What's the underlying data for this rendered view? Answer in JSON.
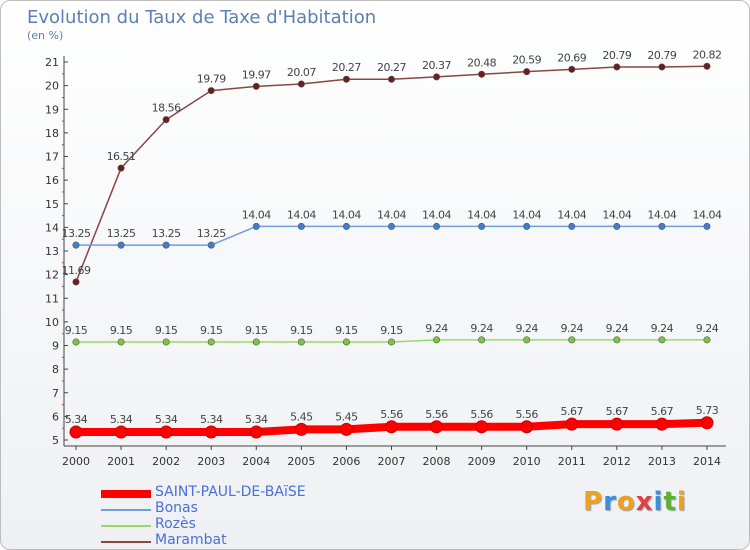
{
  "chart_data": {
    "type": "line",
    "title": "Evolution du Taux de Taxe d'Habitation",
    "subtitle": "(en %)",
    "x": [
      2000,
      2001,
      2002,
      2003,
      2004,
      2005,
      2006,
      2007,
      2008,
      2009,
      2010,
      2011,
      2012,
      2013,
      2014
    ],
    "ylim": [
      5,
      21
    ],
    "yticks": [
      5,
      6,
      7,
      8,
      9,
      10,
      11,
      12,
      13,
      14,
      15,
      16,
      17,
      18,
      19,
      20,
      21
    ],
    "grid": false,
    "legend_position": "bottom-left",
    "series": [
      {
        "name": "SAINT-PAUL-DE-BAïSE",
        "color": "#ff0000",
        "marker_color": "#ff0000",
        "emphasized": true,
        "labels": [
          "5.34",
          "5.34",
          "5.34",
          "5.34",
          "5.34",
          "5.45",
          "5.45",
          "5.56",
          "5.56",
          "5.56",
          "5.56",
          "5.67",
          "5.67",
          "5.67",
          "5.73"
        ],
        "values": [
          5.34,
          5.34,
          5.34,
          5.34,
          5.34,
          5.45,
          5.45,
          5.56,
          5.56,
          5.56,
          5.56,
          5.67,
          5.67,
          5.67,
          5.73
        ]
      },
      {
        "name": "Bonas",
        "color": "#6d9fd8",
        "marker_color": "#3f7fd0",
        "emphasized": false,
        "labels": [
          "13.25",
          "13.25",
          "13.25",
          "13.25",
          "14.04",
          "14.04",
          "14.04",
          "14.04",
          "14.04",
          "14.04",
          "14.04",
          "14.04",
          "14.04",
          "14.04",
          "14.04"
        ],
        "values": [
          13.25,
          13.25,
          13.25,
          13.25,
          14.04,
          14.04,
          14.04,
          14.04,
          14.04,
          14.04,
          14.04,
          14.04,
          14.04,
          14.04,
          14.04
        ]
      },
      {
        "name": "Rozès",
        "color": "#9bd86a",
        "marker_color": "#7cc63f",
        "emphasized": false,
        "labels": [
          "9.15",
          "9.15",
          "9.15",
          "9.15",
          "9.15",
          "9.15",
          "9.15",
          "9.15",
          "9.24",
          "9.24",
          "9.24",
          "9.24",
          "9.24",
          "9.24",
          "9.24"
        ],
        "values": [
          9.15,
          9.15,
          9.15,
          9.15,
          9.15,
          9.15,
          9.15,
          9.15,
          9.24,
          9.24,
          9.24,
          9.24,
          9.24,
          9.24,
          9.24
        ]
      },
      {
        "name": "Marambat",
        "color": "#8a4545",
        "marker_color": "#6b1e1e",
        "emphasized": false,
        "labels": [
          "11.69",
          "16.51",
          "18.56",
          "19.79",
          "19.97",
          "20.07",
          "20.27",
          "20.27",
          "20.37",
          "20.48",
          "20.59",
          "20.69",
          "20.79",
          "20.79",
          "20.82"
        ],
        "values": [
          11.69,
          16.51,
          18.56,
          19.79,
          19.97,
          20.07,
          20.27,
          20.27,
          20.37,
          20.48,
          20.59,
          20.69,
          20.79,
          20.79,
          20.82
        ]
      }
    ]
  },
  "brand": {
    "letters": [
      "P",
      "r",
      "o",
      "x",
      "i",
      "t",
      "i"
    ],
    "colors": [
      "#f0a020",
      "#3a8ee0",
      "#f0a020",
      "#e04040",
      "#3a8ee0",
      "#60b030",
      "#f0a020"
    ]
  }
}
